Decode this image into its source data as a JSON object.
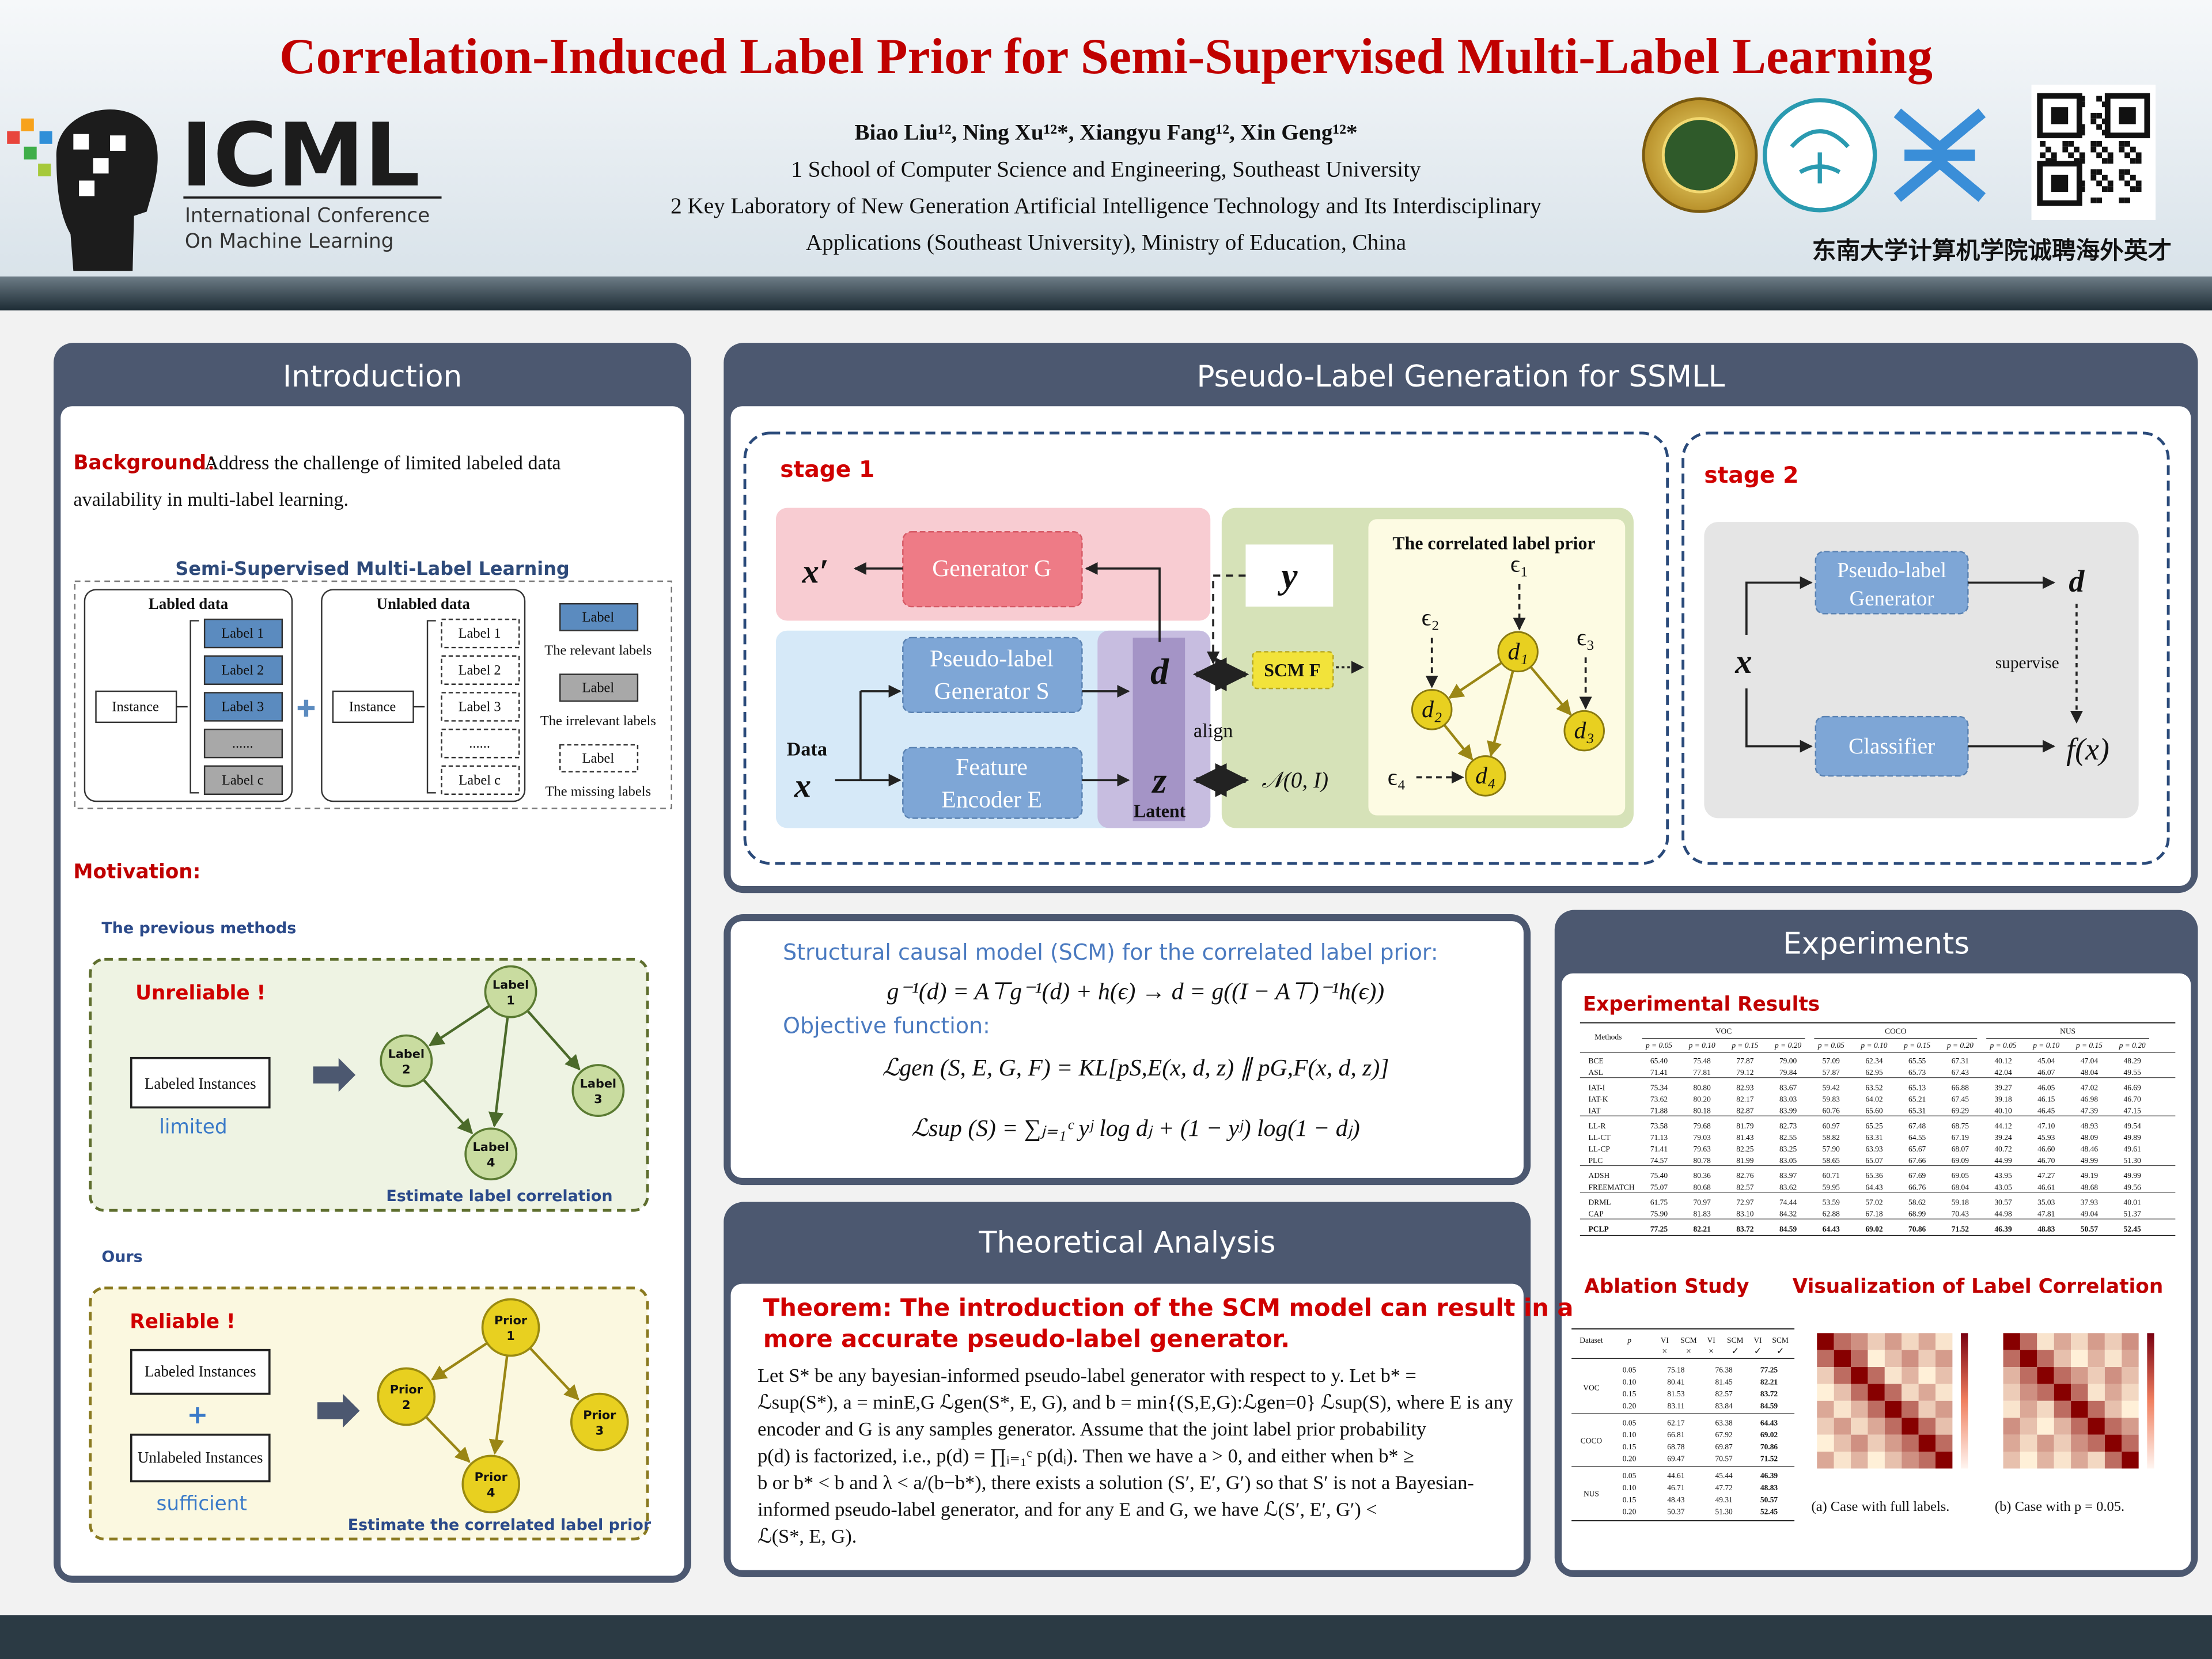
{
  "header": {
    "title": "Correlation-Induced Label Prior for Semi-Supervised Multi-Label Learning",
    "authors": "Biao Liu¹², Ning Xu¹²*, Xiangyu Fang¹², Xin Geng¹²*",
    "affiliations": [
      "1 School of Computer Science and Engineering, Southeast University",
      "2 Key Laboratory of New Generation Artificial Intelligence Technology and Its Interdisciplinary",
      "Applications (Southeast University), Ministry of Education, China"
    ],
    "recruit": "东南大学计算机学院诚聘海外英才",
    "logo": {
      "name": "ICML",
      "line1": "International Conference",
      "line2": "On Machine Learning"
    }
  },
  "introduction": {
    "title": "Introduction",
    "background": {
      "label": "Background：",
      "lines": [
        "Address the challenge of limited labeled data",
        "availability in multi-label learning."
      ]
    },
    "ssmll": {
      "title": "Semi-Supervised Multi-Label Learning",
      "labeled": {
        "title": "Labled data",
        "instance": "Instance",
        "labels": [
          "Label  1",
          "Label  2",
          "Label  3",
          "......",
          "Label  c"
        ]
      },
      "unlabeled": {
        "title": "Unlabled data",
        "instance": "Instance",
        "labels": [
          "Label  1",
          "Label  2",
          "Label  3",
          "......",
          "Label  c"
        ]
      },
      "legend": [
        {
          "box": "Label",
          "text": "The relevant labels"
        },
        {
          "box": "Label",
          "text": "The irrelevant labels"
        },
        {
          "box": "Label",
          "text": "The missing labels"
        }
      ]
    },
    "motivation": {
      "label": "Motivation:",
      "previous": {
        "heading": "The previous methods",
        "verdict": "Unreliable !",
        "instances": "Labeled Instances",
        "note": "limited",
        "nodes": [
          [
            "Label",
            "1"
          ],
          [
            "Label",
            "2"
          ],
          [
            "Label",
            "3"
          ],
          [
            "Label",
            "4"
          ]
        ],
        "caption": "Estimate label correlation"
      },
      "ours": {
        "heading": "Ours",
        "verdict": "Reliable !",
        "instances": "Labeled Instances",
        "plus": "+",
        "unlabeled": "Unlabeled Instances",
        "note": "sufficient",
        "nodes": [
          [
            "Prior",
            "1"
          ],
          [
            "Prior",
            "2"
          ],
          [
            "Prior",
            "3"
          ],
          [
            "Prior",
            "4"
          ]
        ],
        "caption": "Estimate the correlated label prior"
      }
    }
  },
  "pseudo_label": {
    "title": "Pseudo-Label Generation for SSMLL",
    "stage1": {
      "title": "stage 1",
      "x_prime": "x′",
      "generator": "Generator G",
      "pseudo_generator": [
        "Pseudo-label",
        "Generator S"
      ],
      "encoder": [
        "Feature",
        "Encoder E"
      ],
      "data": "Data",
      "x": "x",
      "d": "d",
      "z": "z",
      "latent": "Latent",
      "align": "align",
      "y": "y",
      "scm": "SCM F",
      "normal": "𝒩(0, I)",
      "prior_title": "The correlated label prior",
      "epsilons": [
        "ϵ₁",
        "ϵ₂",
        "ϵ₃",
        "ϵ₄"
      ],
      "nodes": [
        "d₁",
        "d₂",
        "d₃",
        "d₄"
      ]
    },
    "stage2": {
      "title": "stage 2",
      "generator": [
        "Pseudo-label",
        "Generator"
      ],
      "classifier": "Classifier",
      "x": "x",
      "d": "d",
      "fx": "f(x)",
      "supervise": "supervise"
    }
  },
  "scm": {
    "heading": "Structural causal model (SCM) for the correlated label prior:",
    "equation": "g⁻¹(d) = A⊤g⁻¹(d) + h(ϵ) → d = g((I − A⊤)⁻¹h(ϵ))",
    "objective_heading": "Objective function:",
    "objectives": [
      "ℒgen (S, E, G, F) = KL[pS,E(x, d, z) ∥ pG,F(x, d, z)]",
      "ℒsup (S) = ∑ⱼ₌₁ᶜ yʲ log dⱼ + (1 − yʲ) log(1 − dⱼ)"
    ]
  },
  "theory": {
    "title": "Theoretical Analysis",
    "theorem": [
      "Theorem: The introduction of the SCM model can result in a",
      "more accurate pseudo-label generator."
    ],
    "body": [
      "Let S* be any bayesian-informed pseudo-label generator with respect to y. Let b* =",
      "ℒsup(S*), a = minE,G ℒgen(S*, E, G), and b = min{(S,E,G):ℒgen=0} ℒsup(S), where E is any",
      "encoder and G is any samples generator. Assume that the joint label prior probability",
      "p(d) is factorized, i.e., p(d) = ∏ᵢ₌₁ᶜ p(dᵢ). Then we have a > 0, and either when b* ≥",
      "b or b* < b and λ < a/(b−b*), there exists a solution (S′, E′, G′) so that S′ is not a Bayesian-",
      "informed pseudo-label generator, and for any E and G, we have ℒ(S′, E′, G′) <",
      "ℒ(S*, E, G)."
    ]
  },
  "experiments": {
    "title": "Experiments",
    "results": {
      "title": "Experimental Results",
      "header": {
        "methods": "Methods",
        "groups": [
          "VOC",
          "COCO",
          "NUS"
        ],
        "p": [
          "p = 0.05",
          "p = 0.10",
          "p = 0.15",
          "p = 0.20",
          "p = 0.05",
          "p = 0.10",
          "p = 0.15",
          "p = 0.20",
          "p = 0.05",
          "p = 0.10",
          "p = 0.15",
          "p = 0.20"
        ]
      },
      "rows": [
        {
          "method": "BCE",
          "values": [
            "65.40",
            "75.48",
            "77.87",
            "79.00",
            "57.09",
            "62.34",
            "65.55",
            "67.31",
            "40.12",
            "45.04",
            "47.04",
            "48.29"
          ]
        },
        {
          "method": "ASL",
          "values": [
            "71.41",
            "77.81",
            "79.12",
            "79.84",
            "57.87",
            "62.95",
            "65.73",
            "67.43",
            "42.04",
            "46.07",
            "48.04",
            "49.55"
          ]
        },
        {
          "method": "IAT-I",
          "values": [
            "75.34",
            "80.80",
            "82.93",
            "83.67",
            "59.42",
            "63.52",
            "65.13",
            "66.88",
            "39.27",
            "46.05",
            "47.02",
            "46.69"
          ]
        },
        {
          "method": "IAT-K",
          "values": [
            "73.62",
            "80.20",
            "82.17",
            "83.03",
            "59.83",
            "64.02",
            "65.21",
            "67.45",
            "39.18",
            "46.15",
            "46.98",
            "46.70"
          ]
        },
        {
          "method": "IAT",
          "values": [
            "71.88",
            "80.18",
            "82.87",
            "83.99",
            "60.76",
            "65.60",
            "65.31",
            "69.29",
            "40.10",
            "46.45",
            "47.39",
            "47.15"
          ]
        },
        {
          "method": "LL-R",
          "values": [
            "73.58",
            "79.68",
            "81.79",
            "82.73",
            "60.97",
            "65.25",
            "67.48",
            "68.75",
            "44.12",
            "47.10",
            "48.93",
            "49.54"
          ]
        },
        {
          "method": "LL-CT",
          "values": [
            "71.13",
            "79.03",
            "81.43",
            "82.55",
            "58.82",
            "63.31",
            "64.55",
            "67.19",
            "39.24",
            "45.93",
            "48.09",
            "49.89"
          ]
        },
        {
          "method": "LL-CP",
          "values": [
            "71.41",
            "79.63",
            "82.25",
            "83.25",
            "57.90",
            "63.93",
            "65.67",
            "68.07",
            "40.72",
            "46.60",
            "48.46",
            "49.61"
          ]
        },
        {
          "method": "PLC",
          "values": [
            "74.57",
            "80.78",
            "81.99",
            "83.05",
            "58.65",
            "65.07",
            "67.66",
            "69.09",
            "44.99",
            "46.70",
            "49.99",
            "51.30"
          ]
        },
        {
          "method": "ADSH",
          "values": [
            "75.40",
            "80.36",
            "82.76",
            "83.97",
            "60.71",
            "65.36",
            "67.69",
            "69.05",
            "43.95",
            "47.27",
            "49.19",
            "49.99"
          ]
        },
        {
          "method": "FREEMATCH",
          "values": [
            "75.07",
            "80.68",
            "82.57",
            "83.62",
            "59.95",
            "64.43",
            "66.76",
            "68.04",
            "43.05",
            "46.61",
            "48.68",
            "49.56"
          ]
        },
        {
          "method": "DRML",
          "values": [
            "61.75",
            "70.97",
            "72.97",
            "74.44",
            "53.59",
            "57.02",
            "58.62",
            "59.18",
            "30.57",
            "35.03",
            "37.93",
            "40.01"
          ]
        },
        {
          "method": "CAP",
          "values": [
            "75.90",
            "81.83",
            "83.10",
            "84.32",
            "62.88",
            "67.18",
            "68.99",
            "70.43",
            "44.98",
            "47.81",
            "49.04",
            "51.37"
          ]
        },
        {
          "method": "PCLP",
          "values": [
            "77.25",
            "82.21",
            "83.72",
            "84.59",
            "64.43",
            "69.02",
            "70.86",
            "71.52",
            "46.39",
            "48.83",
            "50.57",
            "52.45"
          ]
        }
      ]
    },
    "ablation": {
      "title": "Ablation Study",
      "header": [
        "Dataset",
        "p",
        "VI",
        "SCM",
        "VI",
        "SCM",
        "VI",
        "SCM"
      ],
      "marks": [
        "×",
        "×",
        "×",
        "✓",
        "✓",
        "✓"
      ],
      "groups": [
        {
          "dataset": "VOC",
          "rows": [
            {
              "p": "0.05",
              "values": [
                "75.18",
                "76.38",
                "77.25"
              ]
            },
            {
              "p": "0.10",
              "values": [
                "80.41",
                "81.45",
                "82.21"
              ]
            },
            {
              "p": "0.15",
              "values": [
                "81.53",
                "82.57",
                "83.72"
              ]
            },
            {
              "p": "0.20",
              "values": [
                "83.11",
                "83.84",
                "84.59"
              ]
            }
          ]
        },
        {
          "dataset": "COCO",
          "rows": [
            {
              "p": "0.05",
              "values": [
                "62.17",
                "63.38",
                "64.43"
              ]
            },
            {
              "p": "0.10",
              "values": [
                "66.81",
                "67.92",
                "69.02"
              ]
            },
            {
              "p": "0.15",
              "values": [
                "68.78",
                "69.87",
                "70.86"
              ]
            },
            {
              "p": "0.20",
              "values": [
                "69.47",
                "70.57",
                "71.52"
              ]
            }
          ]
        },
        {
          "dataset": "NUS",
          "rows": [
            {
              "p": "0.05",
              "values": [
                "44.61",
                "45.44",
                "46.39"
              ]
            },
            {
              "p": "0.10",
              "values": [
                "46.71",
                "47.72",
                "48.83"
              ]
            },
            {
              "p": "0.15",
              "values": [
                "48.43",
                "49.31",
                "50.57"
              ]
            },
            {
              "p": "0.20",
              "values": [
                "50.37",
                "51.30",
                "52.45"
              ]
            }
          ]
        }
      ]
    },
    "visualization": {
      "title": "Visualization of Label Correlation",
      "captions": [
        "(a) Case with full labels.",
        "(b) Case with p = 0.05."
      ]
    }
  }
}
